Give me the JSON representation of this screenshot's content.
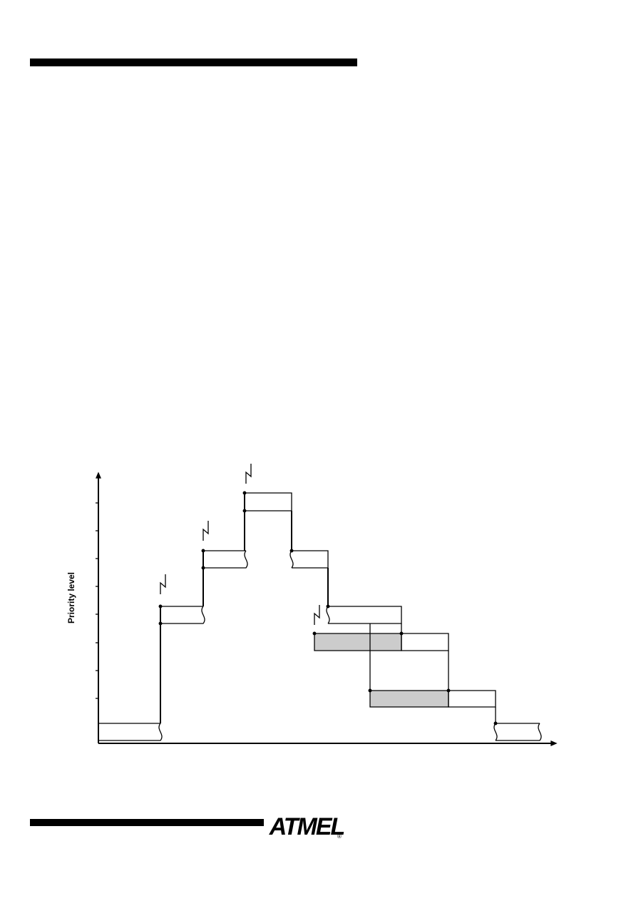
{
  "diagram": {
    "y_axis_label": "Priority level"
  },
  "footer": {
    "logo": "ATMEL",
    "registered": "®"
  }
}
